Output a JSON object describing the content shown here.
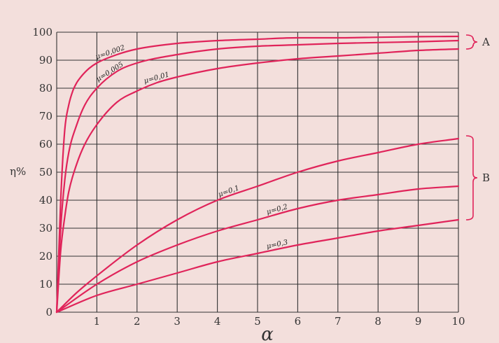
{
  "chart_data": {
    "type": "line",
    "xlabel": "α",
    "ylabel": "η%",
    "xlim": [
      0,
      10
    ],
    "ylim": [
      0,
      100
    ],
    "grid": true,
    "xticks": [
      "1",
      "2",
      "3",
      "4",
      "5",
      "6",
      "7",
      "8",
      "9",
      "10"
    ],
    "yticks": [
      "0",
      "10",
      "20",
      "30",
      "40",
      "50",
      "60",
      "70",
      "80",
      "90",
      "100"
    ],
    "series": [
      {
        "name": "μ=0,002",
        "group": "A",
        "x": [
          0,
          0.1,
          0.2,
          0.3,
          0.4,
          0.5,
          0.6,
          0.8,
          1,
          1.5,
          2,
          3,
          4,
          5,
          6,
          7,
          8,
          9,
          10
        ],
        "y": [
          0,
          40,
          65,
          74,
          79,
          82,
          84,
          87,
          89,
          92,
          94,
          96,
          97,
          97.5,
          98,
          98,
          98.2,
          98.4,
          98.5
        ]
      },
      {
        "name": "μ=0,005",
        "group": "A",
        "x": [
          0,
          0.1,
          0.2,
          0.3,
          0.5,
          0.7,
          1,
          1.5,
          2,
          3,
          4,
          5,
          6,
          7,
          8,
          9,
          10
        ],
        "y": [
          0,
          30,
          47,
          57,
          67,
          74,
          80,
          86,
          89,
          92,
          94,
          95,
          95.5,
          96,
          96.3,
          96.6,
          97
        ]
      },
      {
        "name": "μ=0,01",
        "group": "A",
        "x": [
          0,
          0.1,
          0.2,
          0.3,
          0.5,
          0.7,
          1,
          1.5,
          2,
          2.5,
          3,
          4,
          5,
          6,
          7,
          8,
          9,
          10
        ],
        "y": [
          0,
          22,
          34,
          43,
          53,
          60,
          67,
          75,
          79,
          82,
          84,
          87,
          89,
          90.5,
          91.5,
          92.5,
          93.5,
          94
        ]
      },
      {
        "name": "μ=0,1",
        "group": "B",
        "x": [
          0,
          0.5,
          1,
          2,
          3,
          4,
          5,
          6,
          7,
          8,
          9,
          10
        ],
        "y": [
          0,
          7,
          13,
          24,
          33,
          40,
          45,
          50,
          54,
          57,
          60,
          62
        ]
      },
      {
        "name": "μ=0,2",
        "group": "B",
        "x": [
          0,
          1,
          2,
          3,
          4,
          5,
          6,
          7,
          8,
          9,
          10
        ],
        "y": [
          0,
          10,
          18,
          24,
          29,
          33,
          37,
          40,
          42,
          44,
          45
        ]
      },
      {
        "name": "μ=0,3",
        "group": "B",
        "x": [
          0,
          1,
          2,
          3,
          4,
          5,
          6,
          7,
          8,
          9,
          10
        ],
        "y": [
          0,
          6,
          10,
          14,
          18,
          21,
          24,
          26.5,
          29,
          31,
          33
        ]
      }
    ],
    "groups": [
      {
        "label": "A",
        "series": [
          "μ=0,002",
          "μ=0,005",
          "μ=0,01"
        ],
        "range": [
          94,
          99
        ]
      },
      {
        "label": "B",
        "series": [
          "μ=0,1",
          "μ=0,2",
          "μ=0,3"
        ],
        "range": [
          33,
          63
        ]
      }
    ],
    "colors": {
      "curve": "#e0245a",
      "grid": "#333333",
      "background": "#f3dfdc"
    }
  }
}
